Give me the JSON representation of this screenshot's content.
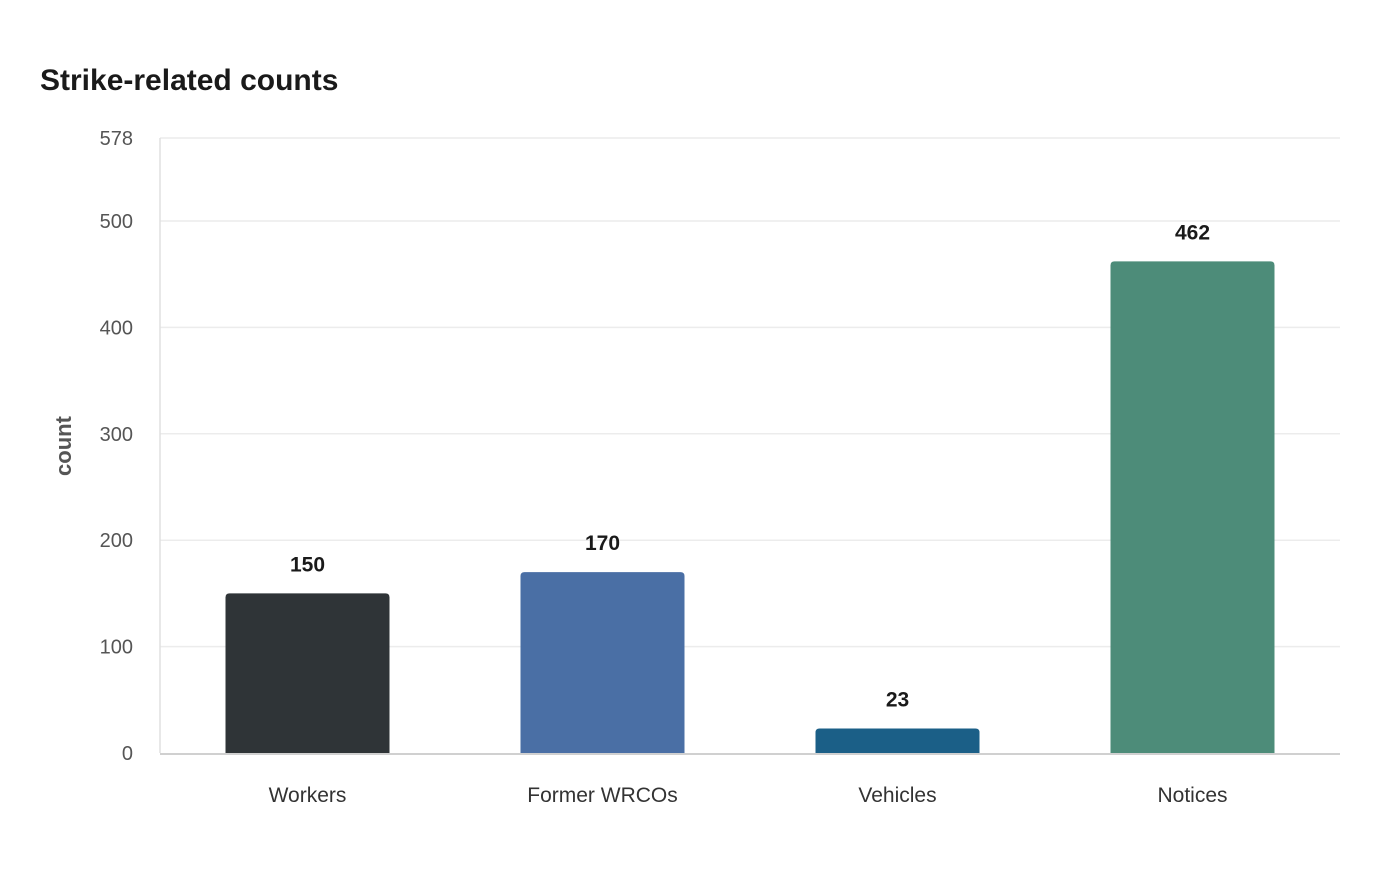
{
  "chart_data": {
    "type": "bar",
    "title": "Strike-related counts",
    "xlabel": "",
    "ylabel": "count",
    "categories": [
      "Workers",
      "Former WRCOs",
      "Vehicles",
      "Notices"
    ],
    "values": [
      150,
      170,
      23,
      462
    ],
    "data_labels": [
      "150",
      "170",
      "23",
      "462"
    ],
    "colors": [
      "#2f3437",
      "#4a6fa5",
      "#1b5f87",
      "#4d8c79"
    ],
    "ylim": [
      0,
      578
    ],
    "yticks": [
      0,
      100,
      200,
      300,
      400,
      500,
      578
    ],
    "grid": true,
    "legend": "none"
  }
}
